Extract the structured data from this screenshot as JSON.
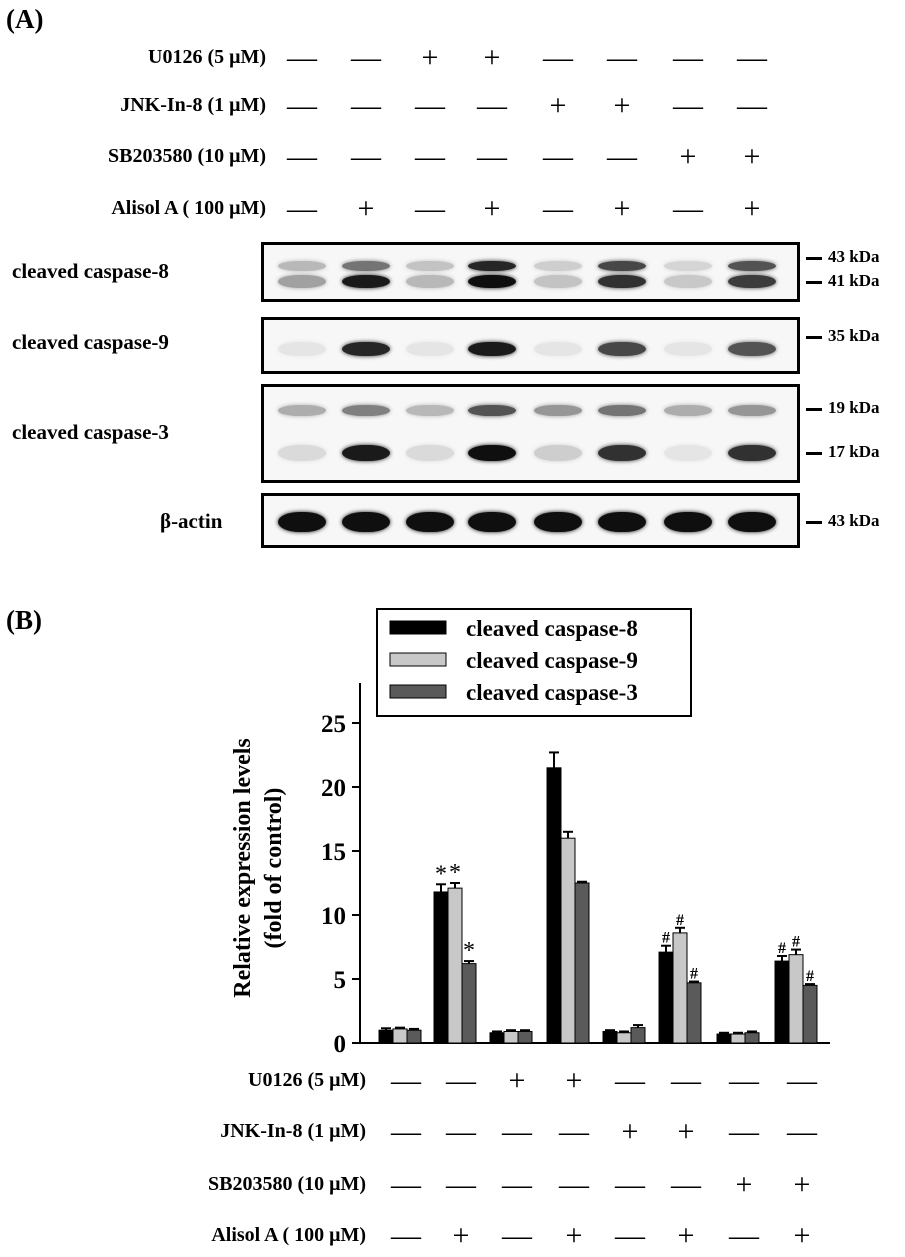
{
  "panel_a_label": "(A)",
  "panel_b_label": "(B)",
  "treatments": [
    {
      "label": "U0126 (5 μM)",
      "signs": [
        "—",
        "—",
        "+",
        "+",
        "—",
        "—",
        "—",
        "—"
      ]
    },
    {
      "label": "JNK-In-8 (1 μM)",
      "signs": [
        "—",
        "—",
        "—",
        "—",
        "+",
        "+",
        "—",
        "—"
      ]
    },
    {
      "label": "SB203580 (10 μM)",
      "signs": [
        "—",
        "—",
        "—",
        "—",
        "—",
        "—",
        "+",
        "+"
      ]
    },
    {
      "label": "Alisol A ( 100 μM)",
      "signs": [
        "—",
        "+",
        "—",
        "+",
        "—",
        "+",
        "—",
        "+"
      ]
    }
  ],
  "blots": [
    {
      "label": "cleaved caspase-8",
      "markers": [
        "43 kDa",
        "41 kDa"
      ]
    },
    {
      "label": "cleaved caspase-9",
      "markers": [
        "35 kDa"
      ]
    },
    {
      "label": "cleaved caspase-3",
      "markers": [
        "19 kDa",
        "17 kDa"
      ]
    },
    {
      "label": "β-actin",
      "markers": [
        "43 kDa"
      ]
    }
  ],
  "chart_data": {
    "type": "bar",
    "ylabel_line1": "Relative expression levels",
    "ylabel_line2": "(fold of control)",
    "ylim": [
      0,
      25
    ],
    "yticks": [
      0,
      5,
      10,
      15,
      20,
      25
    ],
    "legend_position": "top-center",
    "groups": 8,
    "series": [
      {
        "name": "cleaved caspase-8",
        "color": "#000000",
        "values": [
          1.0,
          11.8,
          0.8,
          21.5,
          0.9,
          7.1,
          0.7,
          6.4
        ],
        "errors": [
          0.15,
          0.6,
          0.1,
          1.2,
          0.1,
          0.5,
          0.1,
          0.4
        ],
        "annotations": [
          "",
          "*",
          "",
          "",
          "",
          "#",
          "",
          "#"
        ]
      },
      {
        "name": "cleaved caspase-9",
        "color": "#c8c8c8",
        "values": [
          1.1,
          12.1,
          0.9,
          16.0,
          0.8,
          8.6,
          0.7,
          6.9
        ],
        "errors": [
          0.1,
          0.4,
          0.1,
          0.5,
          0.1,
          0.4,
          0.1,
          0.4
        ],
        "annotations": [
          "",
          "*",
          "",
          "",
          "",
          "#",
          "",
          "#"
        ]
      },
      {
        "name": "cleaved caspase-3",
        "color": "#5a5a5a",
        "values": [
          1.0,
          6.2,
          0.9,
          12.5,
          1.2,
          4.7,
          0.8,
          4.5
        ],
        "errors": [
          0.1,
          0.2,
          0.1,
          0.1,
          0.2,
          0.1,
          0.1,
          0.1
        ],
        "annotations": [
          "",
          "*",
          "",
          "",
          "",
          "#",
          "",
          "#"
        ]
      }
    ]
  }
}
